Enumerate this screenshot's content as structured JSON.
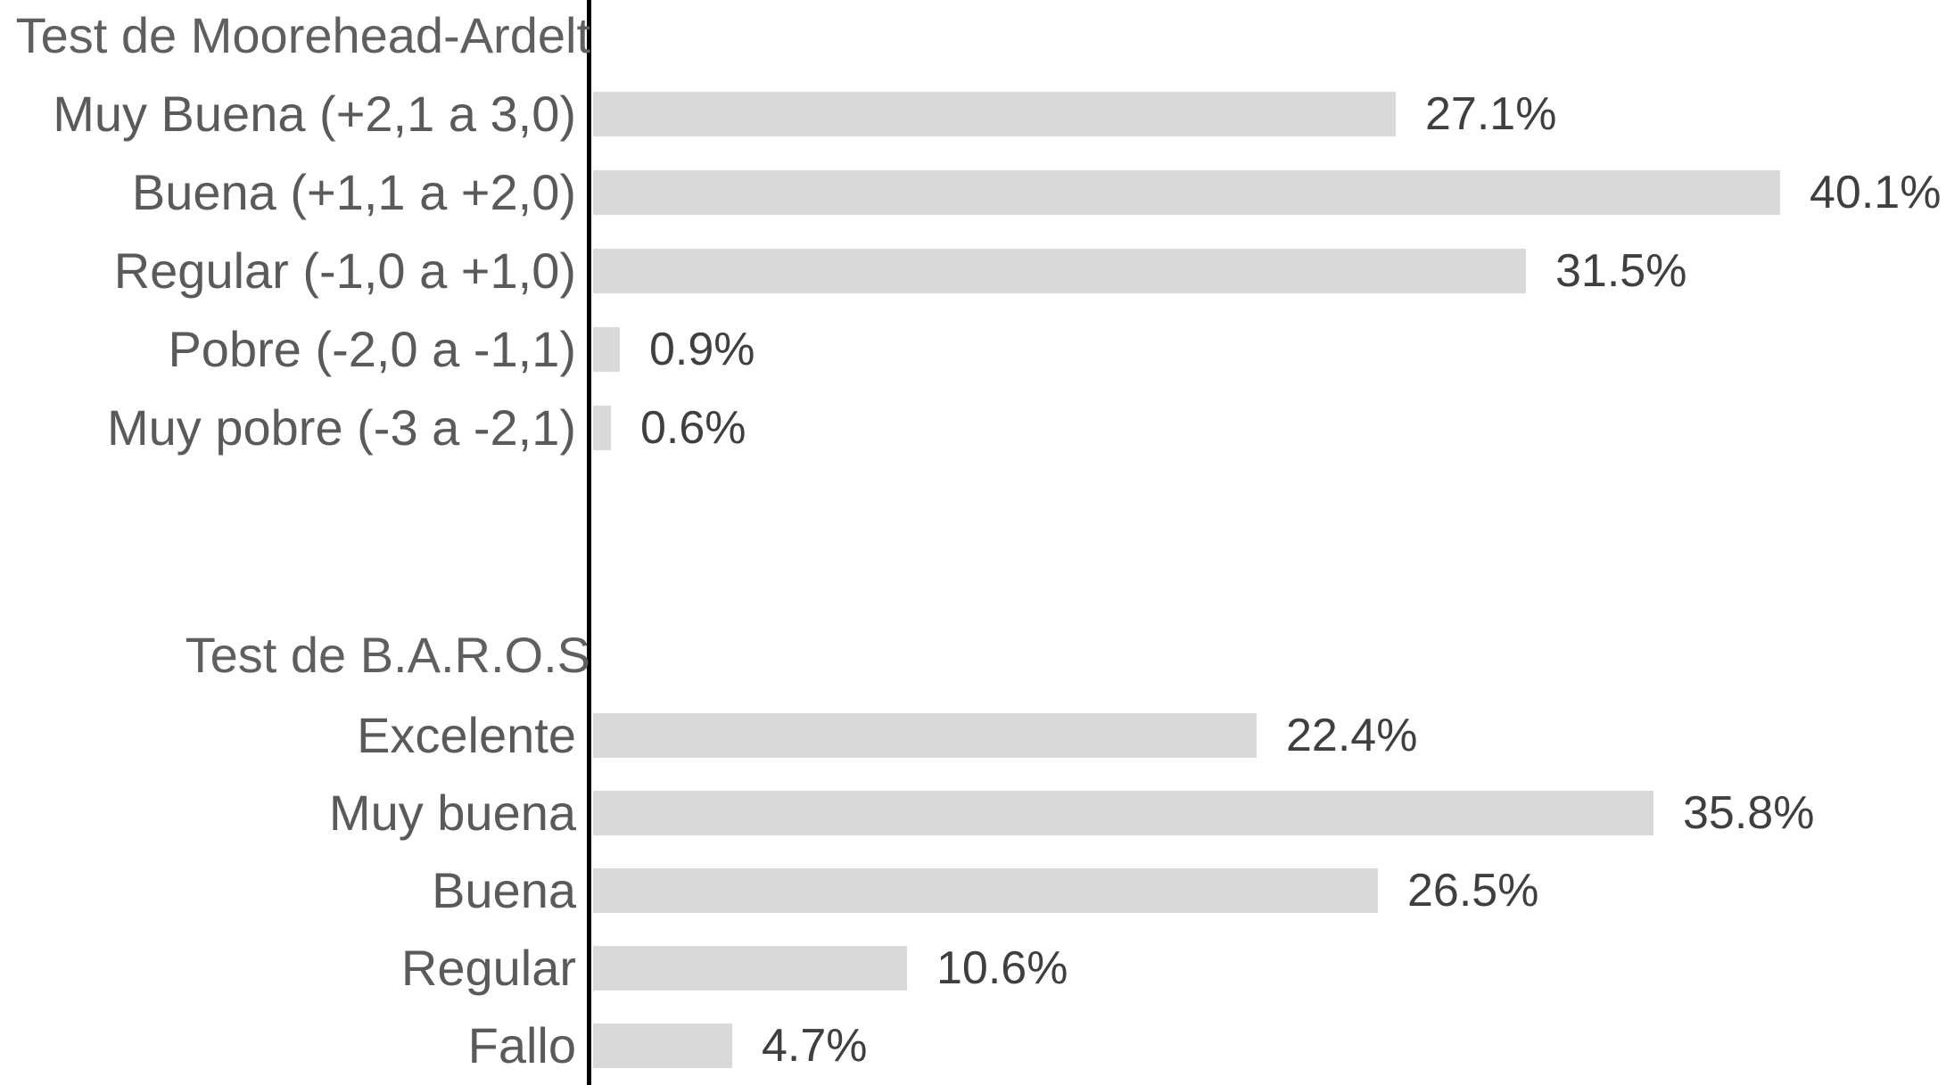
{
  "chart_data": {
    "type": "bar",
    "orientation": "horizontal",
    "unit": "percent",
    "grid": false,
    "x_axis_ticks": [],
    "baseline_axis": "vertical-left",
    "colors": {
      "background": "#ffffff",
      "bar_fill": "#d9d9d9",
      "axis_line": "#000000",
      "category_text": "#5a5a5a",
      "value_text": "#3f3f3f"
    },
    "groups": [
      {
        "title": "Test de Moorehead-Ardelt",
        "categories": [
          "Muy Buena (+2,1 a 3,0)",
          "Buena (+1,1 a +2,0)",
          "Regular (-1,0 a +1,0)",
          "Pobre (-2,0 a -1,1)",
          "Muy pobre (-3 a -2,1)"
        ],
        "values": [
          27.1,
          40.1,
          31.5,
          0.9,
          0.6
        ],
        "value_labels": [
          "27.1%",
          "40.1%",
          "31.5%",
          "0.9%",
          "0.6%"
        ]
      },
      {
        "title": "Test de B.A.R.O.S",
        "categories": [
          "Excelente",
          "Muy buena",
          "Buena",
          "Regular",
          "Fallo"
        ],
        "values": [
          22.4,
          35.8,
          26.5,
          10.6,
          4.7
        ],
        "value_labels": [
          "22.4%",
          "35.8%",
          "26.5%",
          "10.6%",
          "4.7%"
        ]
      }
    ]
  }
}
